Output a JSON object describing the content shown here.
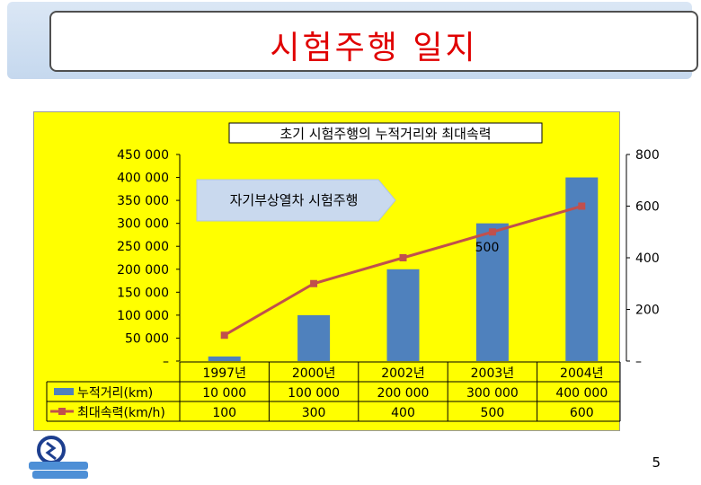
{
  "slide": {
    "title": "시험주행 일지",
    "page_number": "5"
  },
  "chart_data": {
    "type": "bar",
    "title": "초기 시험주행의 누적거리와 최대속력",
    "categories": [
      "1997년",
      "2000년",
      "2002년",
      "2003년",
      "2004년"
    ],
    "series": [
      {
        "name": "누적거리(km)",
        "type": "bar",
        "axis": "left",
        "color": "#4f81bd",
        "values": [
          10000,
          100000,
          200000,
          300000,
          400000
        ],
        "value_labels": [
          "10 000",
          "100 000",
          "200 000",
          "300 000",
          "400 000"
        ]
      },
      {
        "name": "최대속력(km/h)",
        "type": "line",
        "axis": "right",
        "color": "#c0504d",
        "values": [
          100,
          300,
          400,
          500,
          600
        ],
        "value_labels": [
          "100",
          "300",
          "400",
          "500",
          "600"
        ]
      }
    ],
    "y_left": {
      "min": 0,
      "max": 450000,
      "tick_labels": [
        "–",
        "50 000",
        "100 000",
        "150 000",
        "200 000",
        "250 000",
        "300 000",
        "350 000",
        "400 000",
        "450 000"
      ]
    },
    "y_right": {
      "min": 0,
      "max": 800,
      "tick_labels": [
        "–",
        "200",
        "400",
        "600",
        "800"
      ]
    },
    "annotations": [
      {
        "text": "자기부상열차 시험주행"
      },
      {
        "text": "500"
      }
    ],
    "grid": false,
    "legend": "bottom-left data table"
  }
}
